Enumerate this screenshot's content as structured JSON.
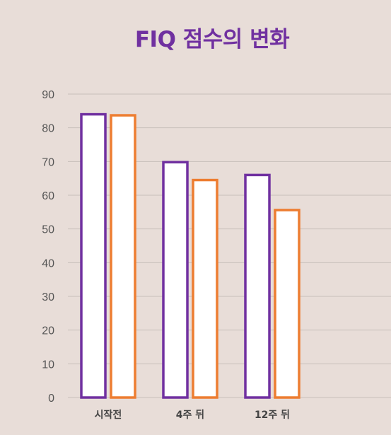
{
  "chart_data": {
    "type": "bar",
    "title": "FIQ 점수의 변화",
    "categories": [
      "시작전",
      "4주 뒤",
      "12주 뒤"
    ],
    "series": [
      {
        "values": [
          84,
          69.8,
          66
        ],
        "color": "#7030a0",
        "fill": "#ffffff"
      },
      {
        "values": [
          83.7,
          64.5,
          55.6
        ],
        "color": "#ed7d31",
        "fill": "#ffffff"
      }
    ],
    "ylim": [
      0,
      90
    ],
    "yticks": [
      0,
      10,
      20,
      30,
      40,
      50,
      60,
      70,
      80,
      90
    ],
    "grid": true,
    "legend": "none"
  },
  "colors": {
    "background": "#e8ddd8",
    "title": "#7030a0",
    "gridline": "#c9bfba"
  }
}
